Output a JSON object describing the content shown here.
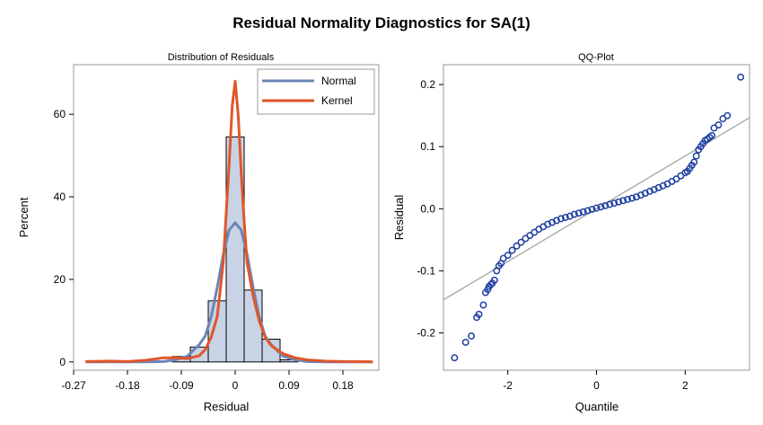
{
  "figure": {
    "title": "Residual Normality Diagnostics for SA(1)"
  },
  "chart_data": [
    {
      "type": "bar",
      "title": "Distribution of Residuals",
      "xlabel": "Residual",
      "ylabel": "Percent",
      "xlim": [
        -0.27,
        0.24
      ],
      "ylim": [
        -2,
        72
      ],
      "x_ticks": [
        -0.27,
        -0.18,
        -0.09,
        0,
        0.09,
        0.18
      ],
      "x_tick_labels": [
        "-0.27",
        "-0.18",
        "-0.09",
        "0",
        "0.09",
        "0.18"
      ],
      "y_ticks": [
        0,
        20,
        40,
        60
      ],
      "y_tick_labels": [
        "0",
        "20",
        "40",
        "60"
      ],
      "bin_width": 0.03,
      "bins": [
        {
          "center": -0.09,
          "percent": 1.3
        },
        {
          "center": -0.06,
          "percent": 3.6
        },
        {
          "center": -0.03,
          "percent": 14.8
        },
        {
          "center": 0.0,
          "percent": 54.5
        },
        {
          "center": 0.03,
          "percent": 17.4
        },
        {
          "center": 0.06,
          "percent": 5.5
        },
        {
          "center": 0.09,
          "percent": 0.5
        }
      ],
      "legend": {
        "placement": "top-right",
        "entries": [
          "Normal",
          "Kernel"
        ]
      },
      "series": [
        {
          "name": "Normal",
          "color": "#6a86b8",
          "x": [
            -0.25,
            -0.21,
            -0.18,
            -0.15,
            -0.12,
            -0.1,
            -0.08,
            -0.06,
            -0.05,
            -0.04,
            -0.03,
            -0.02,
            -0.01,
            0,
            0.01,
            0.02,
            0.03,
            0.04,
            0.05,
            0.06,
            0.08,
            0.1,
            0.12,
            0.15,
            0.18,
            0.21,
            0.23
          ],
          "y": [
            0,
            0,
            0,
            0,
            0.1,
            0.5,
            1.4,
            4.2,
            6.3,
            11,
            18,
            26,
            32,
            33.7,
            32,
            26,
            18,
            11,
            6.3,
            4.2,
            1.4,
            0.5,
            0.1,
            0,
            0,
            0,
            0
          ]
        },
        {
          "name": "Kernel",
          "color": "#e0562a",
          "x": [
            -0.25,
            -0.21,
            -0.18,
            -0.15,
            -0.12,
            -0.1,
            -0.08,
            -0.06,
            -0.05,
            -0.04,
            -0.03,
            -0.02,
            -0.015,
            -0.01,
            -0.005,
            0,
            0.005,
            0.01,
            0.015,
            0.02,
            0.03,
            0.04,
            0.05,
            0.06,
            0.07,
            0.08,
            0.1,
            0.12,
            0.15,
            0.18,
            0.21,
            0.23
          ],
          "y": [
            0.1,
            0.2,
            0.1,
            0.4,
            1,
            1,
            0.8,
            1.5,
            3,
            6,
            11,
            24,
            36,
            48,
            62,
            68,
            60,
            46,
            34,
            24,
            16,
            10,
            6,
            4,
            3,
            2,
            1,
            0.5,
            0.2,
            0.1,
            0.1,
            0
          ]
        }
      ]
    },
    {
      "type": "scatter",
      "title": "QQ-Plot",
      "xlabel": "Quantile",
      "ylabel": "Residual",
      "xlim": [
        -3.45,
        3.45
      ],
      "ylim": [
        -0.26,
        0.232
      ],
      "x_ticks": [
        -2,
        0,
        2
      ],
      "x_tick_labels": [
        "-2",
        "0",
        "2"
      ],
      "y_ticks": [
        -0.2,
        -0.1,
        0.0,
        0.1,
        0.2
      ],
      "y_tick_labels": [
        "-0.2",
        "-0.1",
        "0.0",
        "0.1",
        "0.2"
      ],
      "reference_line": {
        "intercept": 0.0,
        "slope": 0.0425,
        "color": "#a8b3a8"
      },
      "series": [
        {
          "name": "",
          "color": "#1f3fa0",
          "x": [
            -3.2,
            -2.95,
            -2.82,
            -2.7,
            -2.65,
            -2.55,
            -2.5,
            -2.45,
            -2.42,
            -2.38,
            -2.35,
            -2.3,
            -2.25,
            -2.2,
            -2.15,
            -2.1,
            -2.0,
            -1.9,
            -1.8,
            -1.7,
            -1.6,
            -1.5,
            -1.4,
            -1.3,
            -1.2,
            -1.1,
            -1.0,
            -0.9,
            -0.8,
            -0.7,
            -0.6,
            -0.5,
            -0.4,
            -0.3,
            -0.2,
            -0.1,
            0,
            0.1,
            0.2,
            0.3,
            0.4,
            0.5,
            0.6,
            0.7,
            0.8,
            0.9,
            1.0,
            1.1,
            1.2,
            1.3,
            1.4,
            1.5,
            1.6,
            1.7,
            1.8,
            1.9,
            2.0,
            2.05,
            2.1,
            2.15,
            2.2,
            2.25,
            2.3,
            2.35,
            2.4,
            2.45,
            2.5,
            2.55,
            2.6,
            2.65,
            2.75,
            2.85,
            2.95,
            3.25
          ],
          "y": [
            -0.24,
            -0.215,
            -0.205,
            -0.175,
            -0.17,
            -0.155,
            -0.135,
            -0.13,
            -0.125,
            -0.122,
            -0.12,
            -0.115,
            -0.1,
            -0.092,
            -0.088,
            -0.08,
            -0.075,
            -0.067,
            -0.06,
            -0.054,
            -0.048,
            -0.043,
            -0.038,
            -0.033,
            -0.029,
            -0.025,
            -0.022,
            -0.019,
            -0.016,
            -0.014,
            -0.012,
            -0.009,
            -0.007,
            -0.005,
            -0.003,
            -0.001,
            0.001,
            0.003,
            0.005,
            0.007,
            0.009,
            0.011,
            0.013,
            0.015,
            0.017,
            0.019,
            0.022,
            0.025,
            0.028,
            0.031,
            0.034,
            0.037,
            0.04,
            0.044,
            0.048,
            0.053,
            0.058,
            0.06,
            0.065,
            0.07,
            0.075,
            0.085,
            0.095,
            0.1,
            0.105,
            0.11,
            0.112,
            0.115,
            0.118,
            0.13,
            0.135,
            0.145,
            0.15,
            0.212
          ]
        }
      ]
    }
  ]
}
